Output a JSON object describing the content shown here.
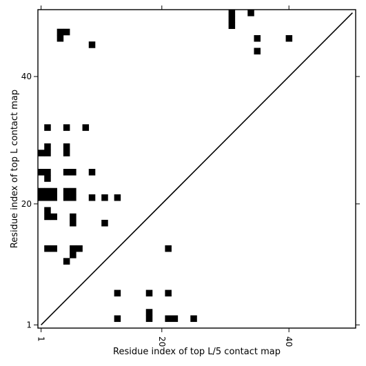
{
  "chart_data": {
    "type": "heatmap",
    "title": "",
    "xlabel": "Residue index of top L/5 contact map",
    "ylabel": "Residue index of top L contact map",
    "xlim": [
      0.5,
      50.5
    ],
    "ylim": [
      0.5,
      50.5
    ],
    "xticks": [
      1,
      20,
      40
    ],
    "yticks": [
      1,
      20,
      40
    ],
    "xtick_labels": [
      "1",
      "20",
      "40"
    ],
    "ytick_labels": [
      "1",
      "20",
      "40"
    ],
    "grid": false,
    "colors": {
      "cell": "#000000",
      "diagonal": "#000000",
      "background": "#ffffff"
    },
    "diagonal": [
      [
        1,
        1
      ],
      [
        50,
        50
      ]
    ],
    "cells_top_L": [
      [
        4,
        47
      ],
      [
        5,
        47
      ],
      [
        4,
        46
      ],
      [
        9,
        45
      ],
      [
        31,
        50
      ],
      [
        31,
        49
      ],
      [
        31,
        48
      ],
      [
        34,
        50
      ],
      [
        35,
        46
      ],
      [
        35,
        44
      ],
      [
        40,
        46
      ],
      [
        2,
        32
      ],
      [
        5,
        32
      ],
      [
        8,
        32
      ],
      [
        2,
        29
      ],
      [
        5,
        29
      ],
      [
        1,
        28
      ],
      [
        2,
        28
      ],
      [
        5,
        28
      ],
      [
        1,
        25
      ],
      [
        2,
        25
      ],
      [
        5,
        25
      ],
      [
        6,
        25
      ],
      [
        9,
        25
      ],
      [
        2,
        24
      ],
      [
        1,
        22
      ],
      [
        2,
        22
      ],
      [
        3,
        22
      ],
      [
        5,
        22
      ],
      [
        6,
        22
      ],
      [
        1,
        21
      ],
      [
        2,
        21
      ],
      [
        3,
        21
      ],
      [
        5,
        21
      ],
      [
        6,
        21
      ],
      [
        9,
        21
      ],
      [
        11,
        21
      ],
      [
        13,
        21
      ],
      [
        2,
        19
      ],
      [
        2,
        18
      ],
      [
        3,
        18
      ],
      [
        6,
        18
      ],
      [
        6,
        17
      ],
      [
        11,
        17
      ],
      [
        2,
        13
      ],
      [
        3,
        13
      ],
      [
        6,
        13
      ],
      [
        7,
        13
      ],
      [
        21,
        13
      ],
      [
        6,
        12
      ],
      [
        5,
        11
      ],
      [
        13,
        6
      ],
      [
        18,
        6
      ],
      [
        21,
        6
      ],
      [
        18,
        3
      ],
      [
        13,
        2
      ],
      [
        18,
        2
      ],
      [
        21,
        2
      ],
      [
        22,
        2
      ],
      [
        25,
        2
      ]
    ]
  }
}
